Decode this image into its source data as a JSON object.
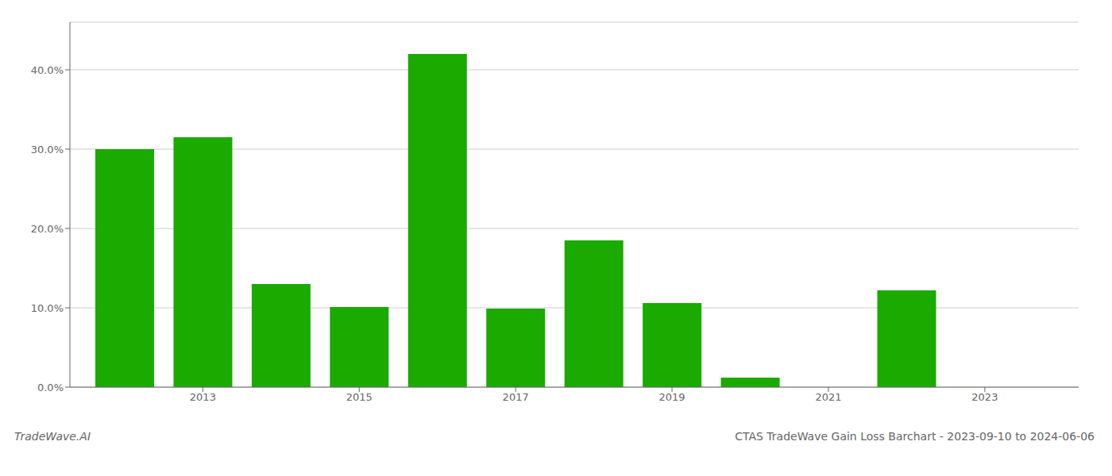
{
  "chart_data": {
    "type": "bar",
    "x": [
      2012,
      2013,
      2014,
      2015,
      2016,
      2017,
      2018,
      2019,
      2020,
      2022
    ],
    "values": [
      0.3,
      0.315,
      0.13,
      0.101,
      0.42,
      0.099,
      0.185,
      0.106,
      0.012,
      0.122
    ],
    "color": "#1aaa00",
    "xlim": [
      2011.3,
      2024.2
    ],
    "xticks": [
      2013,
      2015,
      2017,
      2019,
      2021,
      2023
    ],
    "ylim": [
      0,
      0.46
    ],
    "yticks": [
      {
        "value": 0.0,
        "label": "0.0%"
      },
      {
        "value": 0.1,
        "label": "10.0%"
      },
      {
        "value": 0.2,
        "label": "20.0%"
      },
      {
        "value": 0.3,
        "label": "30.0%"
      },
      {
        "value": 0.4,
        "label": "40.0%"
      }
    ],
    "grid": true,
    "annotations": [
      "TradeWave.AI",
      "CTAS TradeWave Gain Loss Barchart - 2023-09-10 to 2024-06-06"
    ]
  }
}
